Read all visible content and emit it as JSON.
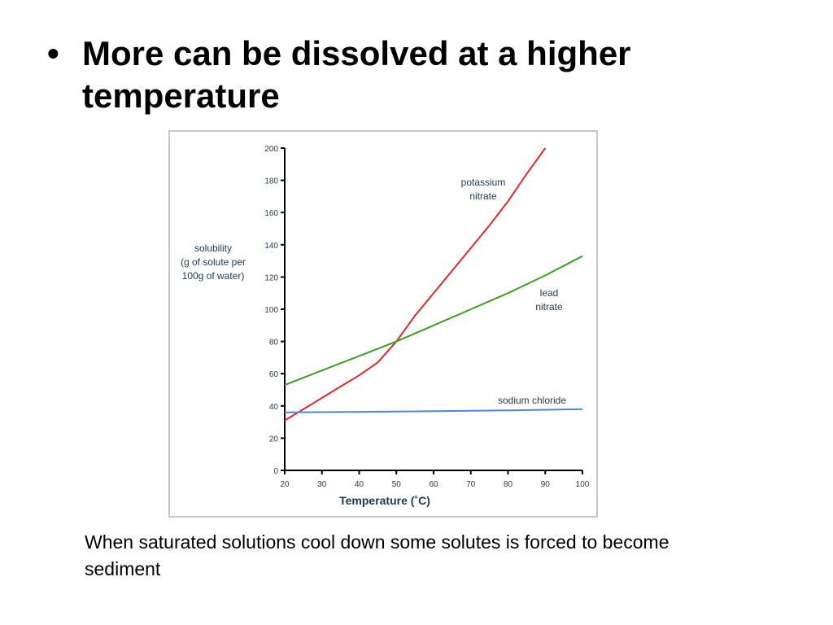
{
  "slide": {
    "bullet_symbol": "•",
    "bullet_text": "More can be dissolved at a higher temperature",
    "caption": "When saturated solutions cool down some solutes is forced to become sediment"
  },
  "chart_data": {
    "type": "line",
    "title": "",
    "xlabel": "Temperature (˚C)",
    "ylabel": [
      "solubility",
      "(g of solute per",
      "100g of water)"
    ],
    "xlim": [
      20,
      100
    ],
    "ylim": [
      0,
      200
    ],
    "xticks": [
      20,
      30,
      40,
      50,
      60,
      70,
      80,
      90,
      100
    ],
    "yticks": [
      0,
      20,
      40,
      60,
      80,
      100,
      120,
      140,
      160,
      180,
      200
    ],
    "grid": false,
    "series": [
      {
        "name": [
          "potassium",
          "nitrate"
        ],
        "color": "#e8262a",
        "points": [
          [
            20,
            31
          ],
          [
            25,
            38
          ],
          [
            30,
            45
          ],
          [
            35,
            52
          ],
          [
            40,
            59
          ],
          [
            45,
            67
          ],
          [
            50,
            80
          ],
          [
            55,
            96
          ],
          [
            60,
            110
          ],
          [
            65,
            124
          ],
          [
            70,
            138
          ],
          [
            75,
            152
          ],
          [
            80,
            167
          ],
          [
            85,
            184
          ],
          [
            90,
            200
          ]
        ]
      },
      {
        "name": [
          "lead",
          "nitrate"
        ],
        "color": "#3aa024",
        "points": [
          [
            20,
            53
          ],
          [
            30,
            62
          ],
          [
            40,
            71
          ],
          [
            50,
            80
          ],
          [
            60,
            90
          ],
          [
            70,
            100
          ],
          [
            80,
            110
          ],
          [
            90,
            121
          ],
          [
            100,
            133
          ]
        ]
      },
      {
        "name": [
          "sodium chloride"
        ],
        "color": "#4e86e8",
        "points": [
          [
            20,
            36
          ],
          [
            40,
            36.3
          ],
          [
            60,
            36.7
          ],
          [
            80,
            37.2
          ],
          [
            100,
            38
          ]
        ]
      }
    ]
  }
}
